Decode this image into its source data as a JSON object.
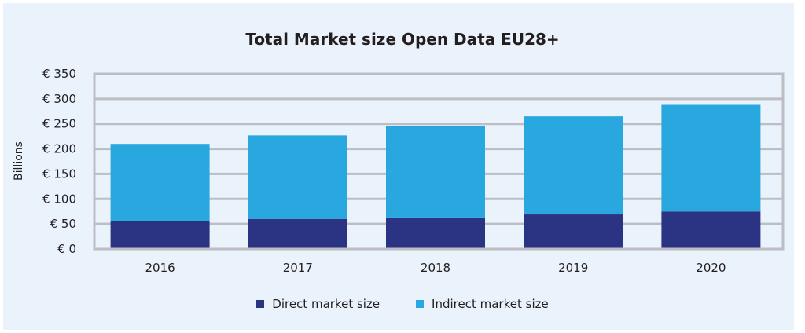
{
  "chart_data": {
    "type": "bar",
    "stacked": true,
    "title": "Total Market size Open Data EU28+",
    "xlabel": "",
    "ylabel": "Billions",
    "categories": [
      "2016",
      "2017",
      "2018",
      "2019",
      "2020"
    ],
    "series": [
      {
        "name": "Direct market size",
        "color": "#2b3483",
        "values": [
          55,
          60,
          63,
          69,
          75
        ]
      },
      {
        "name": "Indirect market size",
        "color": "#29a8e0",
        "values": [
          155,
          167,
          182,
          196,
          213
        ]
      }
    ],
    "ylim": [
      0,
      350
    ],
    "yticks": [
      0,
      50,
      100,
      150,
      200,
      250,
      300,
      350
    ],
    "ytick_labels": [
      "€ 0",
      "€ 50",
      "€ 100",
      "€ 150",
      "€ 200",
      "€ 250",
      "€ 300",
      "€ 350"
    ],
    "grid": true,
    "legend_position": "bottom"
  }
}
